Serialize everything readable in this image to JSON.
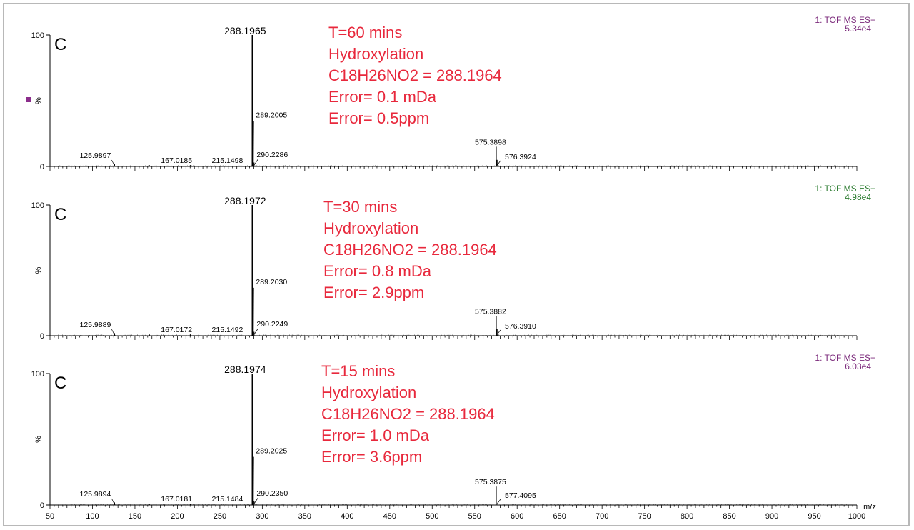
{
  "chart_data": {
    "type": "line",
    "xlabel": "m/z",
    "xlim": [
      50,
      1000
    ],
    "x_ticks": [
      "50",
      "100",
      "150",
      "200",
      "250",
      "300",
      "350",
      "400",
      "450",
      "500",
      "550",
      "600",
      "650",
      "700",
      "750",
      "800",
      "850",
      "900",
      "950",
      "1000"
    ],
    "panels": [
      {
        "letter": "C",
        "y_ticks": [
          "0",
          "100"
        ],
        "ylabel": "%",
        "instrument": "1: TOF MS ES+",
        "intensity": "5.34e4",
        "header_color": "#7b2a7b",
        "has_marker": true,
        "annotations": [
          "T=60 mins",
          "Hydroxylation",
          "C18H26NO2 = 288.1964",
          "Error= 0.1 mDa",
          "Error= 0.5ppm"
        ],
        "peaks": [
          {
            "mz": 125.9897,
            "intensity": 2,
            "label": "125.9897"
          },
          {
            "mz": 167.0185,
            "intensity": 1,
            "label": "167.0185"
          },
          {
            "mz": 215.1498,
            "intensity": 1,
            "label": "215.1498"
          },
          {
            "mz": 288.1965,
            "intensity": 100,
            "label": "288.1965",
            "major": true
          },
          {
            "mz": 289.2005,
            "intensity": 21,
            "label": "289.2005"
          },
          {
            "mz": 290.2286,
            "intensity": 3,
            "label": "290.2286"
          },
          {
            "mz": 575.3898,
            "intensity": 15,
            "label": "575.3898"
          },
          {
            "mz": 576.3924,
            "intensity": 5,
            "label": "576.3924"
          }
        ]
      },
      {
        "letter": "C",
        "y_ticks": [
          "0",
          "100"
        ],
        "ylabel": "%",
        "instrument": "1: TOF MS ES+",
        "intensity": "4.98e4",
        "header_color": "#2e7d32",
        "has_marker": false,
        "annotations": [
          "T=30 mins",
          "Hydroxylation",
          "C18H26NO2 = 288.1964",
          "Error= 0.8 mDa",
          "Error= 2.9ppm"
        ],
        "peaks": [
          {
            "mz": 125.9889,
            "intensity": 2,
            "label": "125.9889"
          },
          {
            "mz": 167.0172,
            "intensity": 1,
            "label": "167.0172"
          },
          {
            "mz": 215.1492,
            "intensity": 1,
            "label": "215.1492"
          },
          {
            "mz": 288.1972,
            "intensity": 100,
            "label": "288.1972",
            "major": true
          },
          {
            "mz": 289.203,
            "intensity": 23,
            "label": "289.2030"
          },
          {
            "mz": 290.2249,
            "intensity": 3,
            "label": "290.2249"
          },
          {
            "mz": 575.3882,
            "intensity": 15,
            "label": "575.3882"
          },
          {
            "mz": 576.391,
            "intensity": 5,
            "label": "576.3910"
          }
        ]
      },
      {
        "letter": "C",
        "y_ticks": [
          "0",
          "100"
        ],
        "ylabel": "%",
        "instrument": "1: TOF MS ES+",
        "intensity": "6.03e4",
        "header_color": "#7b2a7b",
        "has_marker": false,
        "annotations": [
          "T=15 mins",
          "Hydroxylation",
          "C18H26NO2 = 288.1964",
          "Error= 1.0 mDa",
          "Error= 3.6ppm"
        ],
        "peaks": [
          {
            "mz": 125.9894,
            "intensity": 2,
            "label": "125.9894"
          },
          {
            "mz": 167.0181,
            "intensity": 1,
            "label": "167.0181"
          },
          {
            "mz": 215.1484,
            "intensity": 1,
            "label": "215.1484"
          },
          {
            "mz": 288.1974,
            "intensity": 100,
            "label": "288.1974",
            "major": true
          },
          {
            "mz": 289.2025,
            "intensity": 23,
            "label": "289.2025"
          },
          {
            "mz": 290.235,
            "intensity": 3,
            "label": "290.2350"
          },
          {
            "mz": 575.3875,
            "intensity": 14,
            "label": "575.3875"
          },
          {
            "mz": 577.4095,
            "intensity": 2,
            "label": "577.4095"
          }
        ]
      }
    ]
  },
  "colors": {
    "annotation": "#e8283c",
    "axis": "#000000"
  }
}
